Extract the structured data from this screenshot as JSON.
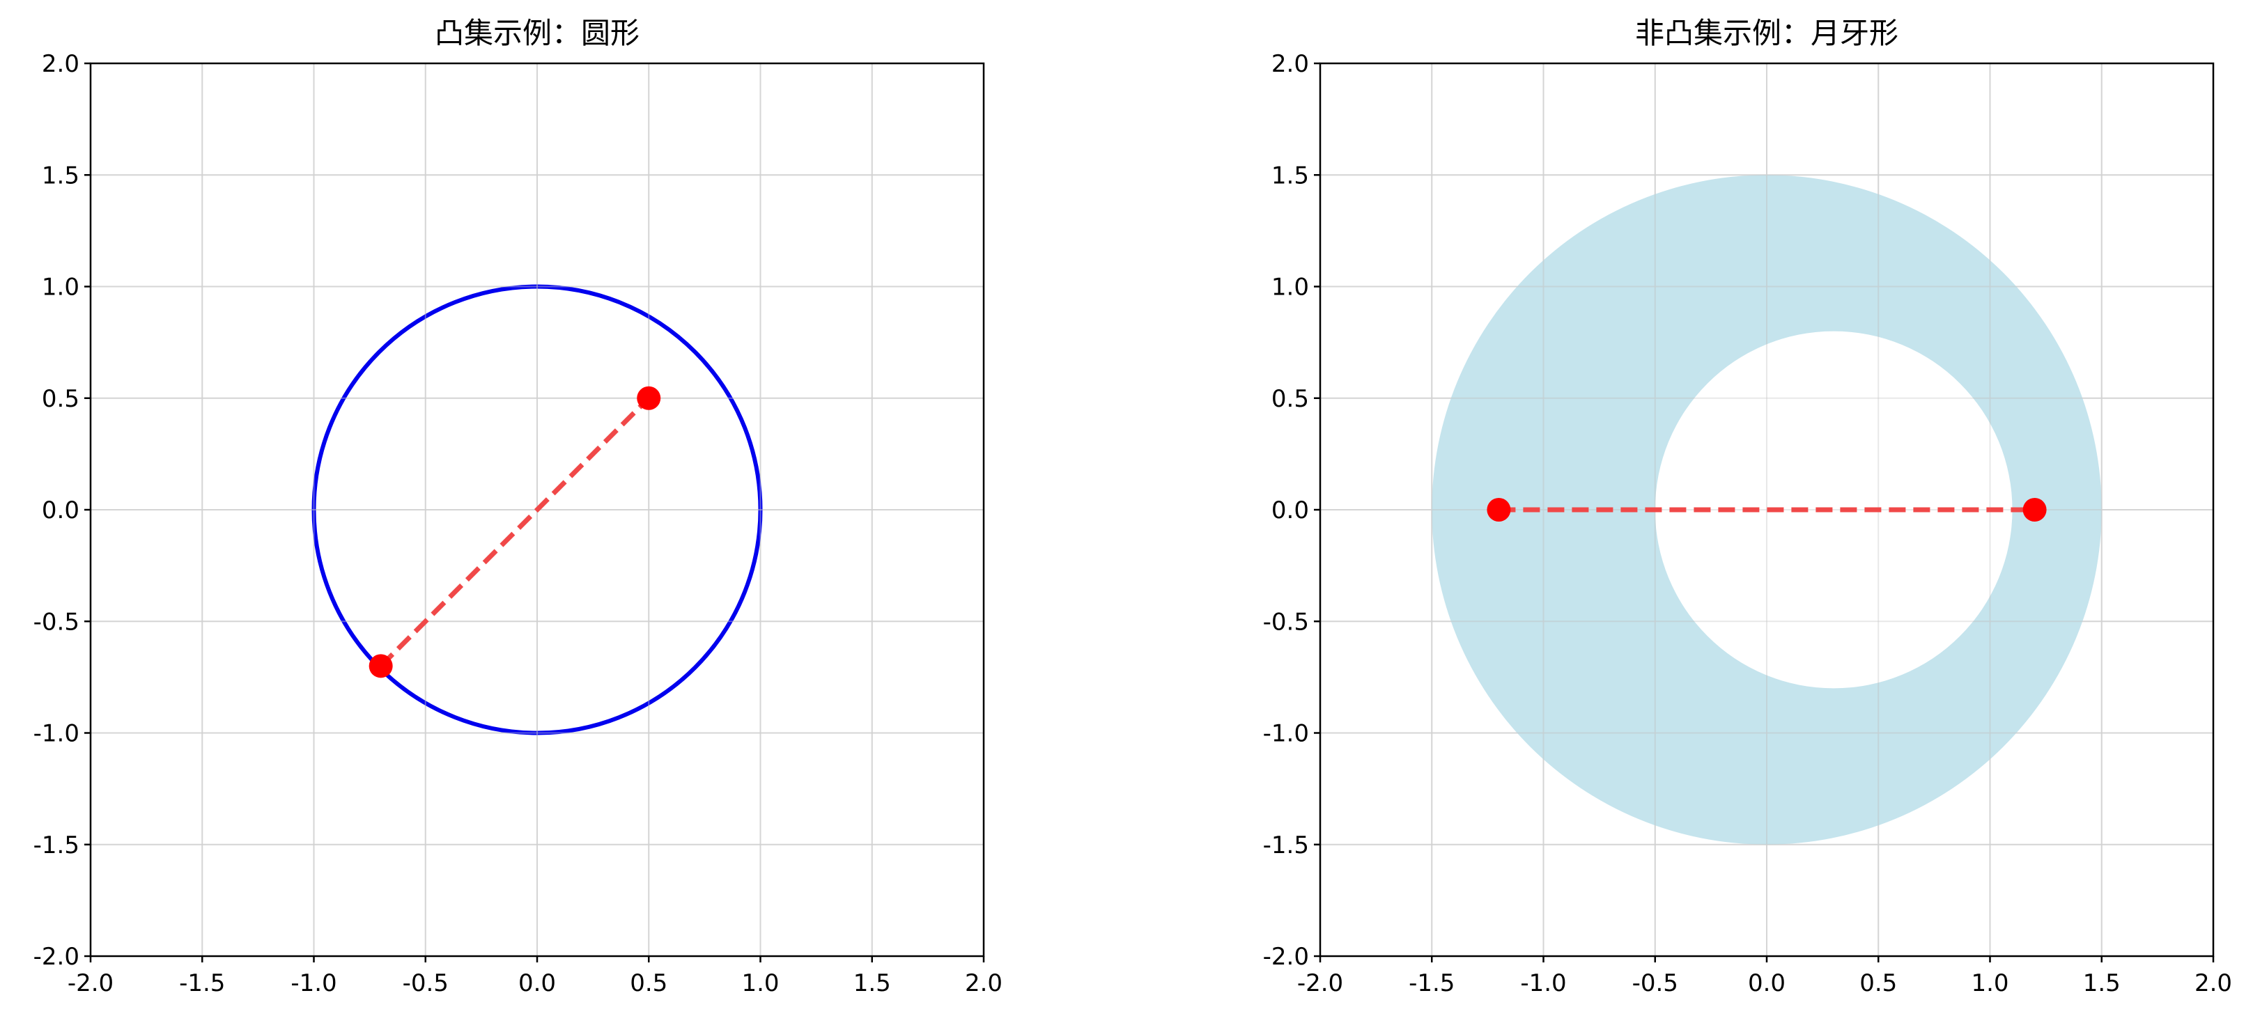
{
  "chart_data": [
    {
      "type": "line",
      "title": "凸集示例：圆形",
      "xlabel": "",
      "ylabel": "",
      "xlim": [
        -2.0,
        2.0
      ],
      "ylim": [
        -2.0,
        2.0
      ],
      "xticks": [
        "-2.0",
        "-1.5",
        "-1.0",
        "-0.5",
        "0.0",
        "0.5",
        "1.0",
        "1.5",
        "2.0"
      ],
      "yticks": [
        "-2.0",
        "-1.5",
        "-1.0",
        "-0.5",
        "0.0",
        "0.5",
        "1.0",
        "1.5",
        "2.0"
      ],
      "grid": true,
      "shapes": [
        {
          "kind": "circle-outline",
          "center": [
            0.0,
            0.0
          ],
          "radius": 1.0,
          "color": "#0000ee"
        }
      ],
      "segments": [
        {
          "from": [
            -0.7,
            -0.7
          ],
          "to": [
            0.5,
            0.5
          ],
          "color": "#f04848",
          "style": "dashed"
        }
      ],
      "points": [
        {
          "x": -0.7,
          "y": -0.7,
          "color": "#ff0000"
        },
        {
          "x": 0.5,
          "y": 0.5,
          "color": "#ff0000"
        }
      ]
    },
    {
      "type": "line",
      "title": "非凸集示例：月牙形",
      "xlabel": "",
      "ylabel": "",
      "xlim": [
        -2.0,
        2.0
      ],
      "ylim": [
        -2.0,
        2.0
      ],
      "xticks": [
        "-2.0",
        "-1.5",
        "-1.0",
        "-0.5",
        "0.0",
        "0.5",
        "1.0",
        "1.5",
        "2.0"
      ],
      "yticks": [
        "-2.0",
        "-1.5",
        "-1.0",
        "-0.5",
        "0.0",
        "0.5",
        "1.0",
        "1.5",
        "2.0"
      ],
      "grid": true,
      "shapes": [
        {
          "kind": "filled-circle",
          "center": [
            0.0,
            0.0
          ],
          "radius": 1.5,
          "color": "#add8e6"
        },
        {
          "kind": "cutout-circle",
          "center": [
            0.3,
            0.0
          ],
          "radius": 0.8,
          "color": "#ffffff"
        }
      ],
      "segments": [
        {
          "from": [
            -1.2,
            0.0
          ],
          "to": [
            1.2,
            0.0
          ],
          "color": "#f04848",
          "style": "dashed"
        }
      ],
      "points": [
        {
          "x": -1.2,
          "y": 0.0,
          "color": "#ff0000"
        },
        {
          "x": 1.2,
          "y": 0.0,
          "color": "#ff0000"
        }
      ]
    }
  ]
}
